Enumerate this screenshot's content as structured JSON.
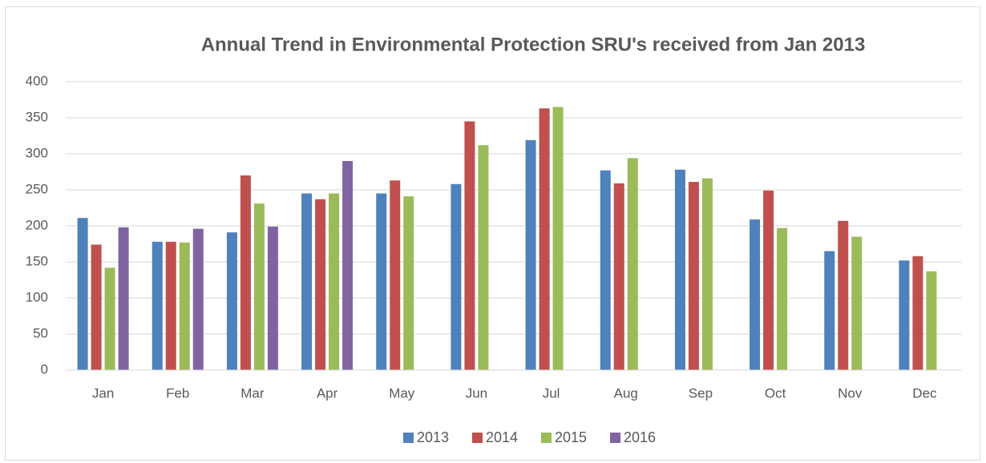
{
  "chart_data": {
    "type": "bar",
    "title": "Annual Trend in Environmental Protection SRU's received  from Jan 2013",
    "categories": [
      "Jan",
      "Feb",
      "Mar",
      "Apr",
      "May",
      "Jun",
      "Jul",
      "Aug",
      "Sep",
      "Oct",
      "Nov",
      "Dec"
    ],
    "series": [
      {
        "name": "2013",
        "color": "#4f81bd",
        "values": [
          211,
          178,
          191,
          245,
          245,
          258,
          319,
          277,
          278,
          209,
          165,
          152
        ]
      },
      {
        "name": "2014",
        "color": "#c0504d",
        "values": [
          174,
          178,
          270,
          237,
          263,
          345,
          363,
          259,
          261,
          249,
          207,
          158
        ]
      },
      {
        "name": "2015",
        "color": "#9bbb59",
        "values": [
          142,
          177,
          231,
          245,
          241,
          312,
          365,
          294,
          266,
          197,
          185,
          137
        ]
      },
      {
        "name": "2016",
        "color": "#8064a2",
        "values": [
          198,
          196,
          199,
          290,
          null,
          null,
          null,
          null,
          null,
          null,
          null,
          null
        ]
      }
    ],
    "ylim": [
      0,
      400
    ],
    "yticks": [
      0,
      50,
      100,
      150,
      200,
      250,
      300,
      350,
      400
    ],
    "grid": true,
    "legend": "bottom"
  }
}
